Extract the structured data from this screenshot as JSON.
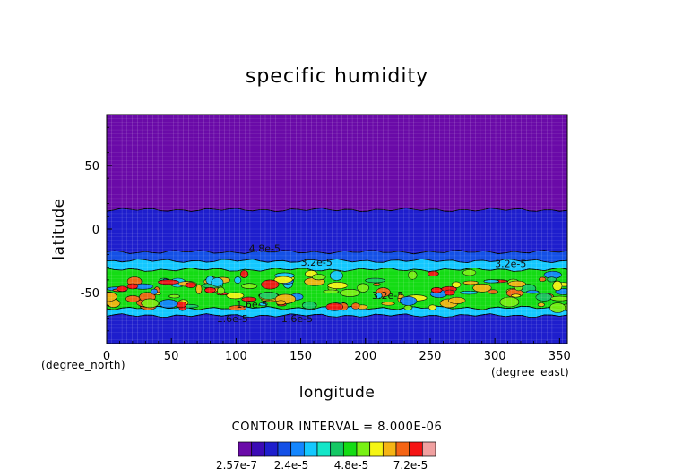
{
  "chart_data": {
    "type": "heatmap",
    "title": "specific humidity",
    "xlabel": "longitude",
    "ylabel": "latitude",
    "x_units": "(degree_east)",
    "y_units": "(degree_north)",
    "xlim": [
      0,
      356
    ],
    "ylim": [
      -90,
      90
    ],
    "x_ticks": [
      "0",
      "50",
      "100",
      "150",
      "200",
      "250",
      "300",
      "350"
    ],
    "y_ticks": [
      "50",
      "0",
      "-50"
    ],
    "grid": false,
    "contour_interval_label": "CONTOUR INTERVAL = 8.000E-06",
    "contour_labels": [
      "4.8e-5",
      "3.2e-5",
      "3.2e-5",
      "3.2e-5",
      "1.6e-5",
      "1.6e-5",
      "1.6e-5"
    ],
    "colorbar": {
      "colors": [
        "#6a0aa8",
        "#3b0ab5",
        "#1e1ecd",
        "#1450e6",
        "#1486ff",
        "#14c8ff",
        "#14e6c8",
        "#14c864",
        "#14dc14",
        "#78f014",
        "#f5f514",
        "#f5b414",
        "#f56414",
        "#f51414",
        "#f0a0a0"
      ],
      "labels": [
        "2.57e-7",
        "2.4e-5",
        "4.8e-5",
        "7.2e-5"
      ]
    },
    "bands": [
      {
        "lat_top": 90,
        "lat_bottom": 15,
        "level": "lowest"
      },
      {
        "lat_top": 15,
        "lat_bottom": -18,
        "level": "low"
      },
      {
        "lat_top": -18,
        "lat_bottom": -25,
        "level": "low-mid"
      },
      {
        "lat_top": -25,
        "lat_bottom": -32,
        "level": "mid"
      },
      {
        "lat_top": -32,
        "lat_bottom": -62,
        "level": "high"
      },
      {
        "lat_top": -62,
        "lat_bottom": -68,
        "level": "mid"
      },
      {
        "lat_top": -68,
        "lat_bottom": -90,
        "level": "low"
      }
    ]
  }
}
